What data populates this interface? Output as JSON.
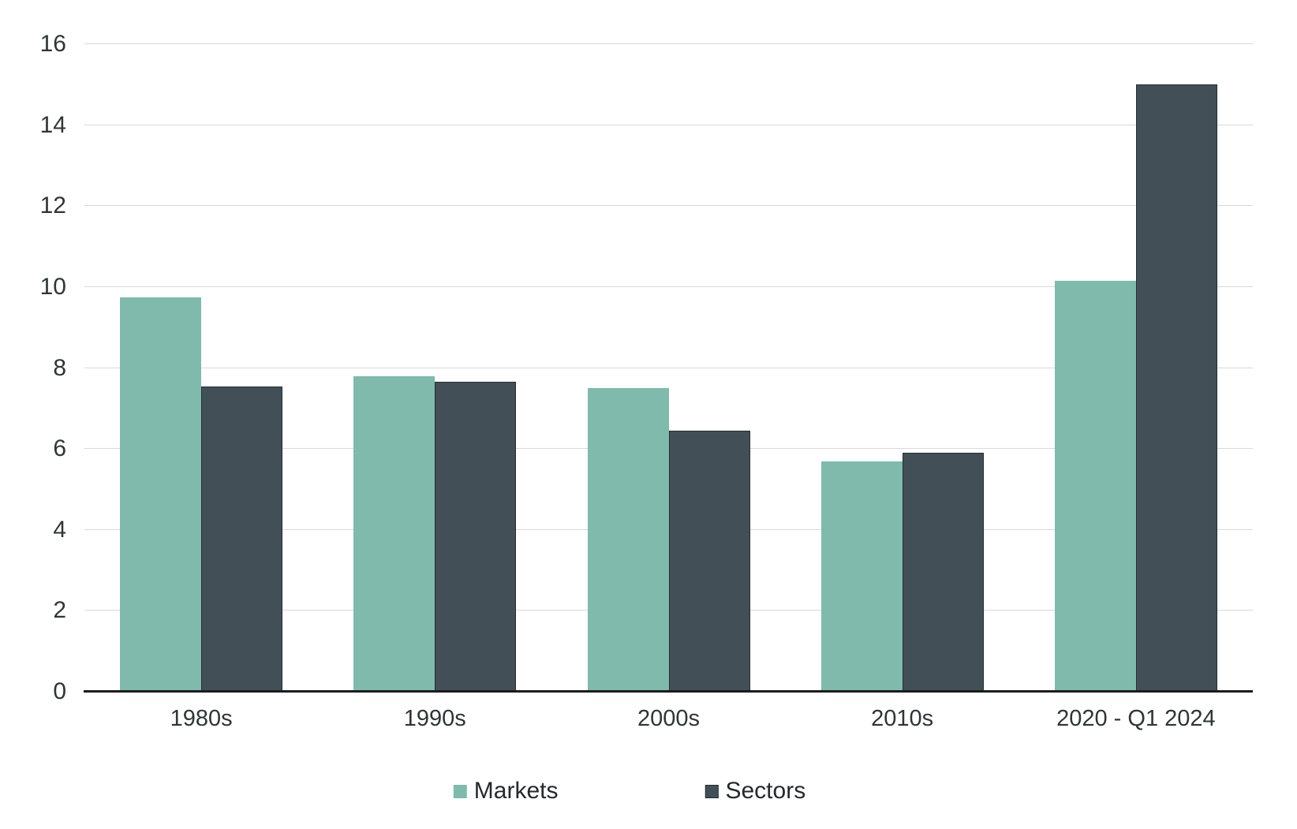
{
  "chart_data": {
    "type": "bar",
    "title": "",
    "xlabel": "",
    "ylabel": "",
    "categories": [
      "1980s",
      "1990s",
      "2000s",
      "2010s",
      "2020 - Q1 2024"
    ],
    "series": [
      {
        "name": "Markets",
        "color": "#80BAAC",
        "values": [
          9.75,
          7.8,
          7.5,
          5.7,
          10.15
        ]
      },
      {
        "name": "Sectors",
        "color": "#434F56",
        "values": [
          7.55,
          7.65,
          6.45,
          5.9,
          15.0
        ]
      }
    ],
    "ylim": [
      0,
      16
    ],
    "yticks": [
      0,
      2,
      4,
      6,
      8,
      10,
      12,
      14,
      16
    ],
    "grid": true,
    "legend_position": "bottom",
    "colors": {
      "gridline": "#d9d9d9",
      "axis_line": "#1c1c1c",
      "tick_text": "#2f3537",
      "legend_text": "#24292b",
      "background": "#ffffff"
    }
  }
}
